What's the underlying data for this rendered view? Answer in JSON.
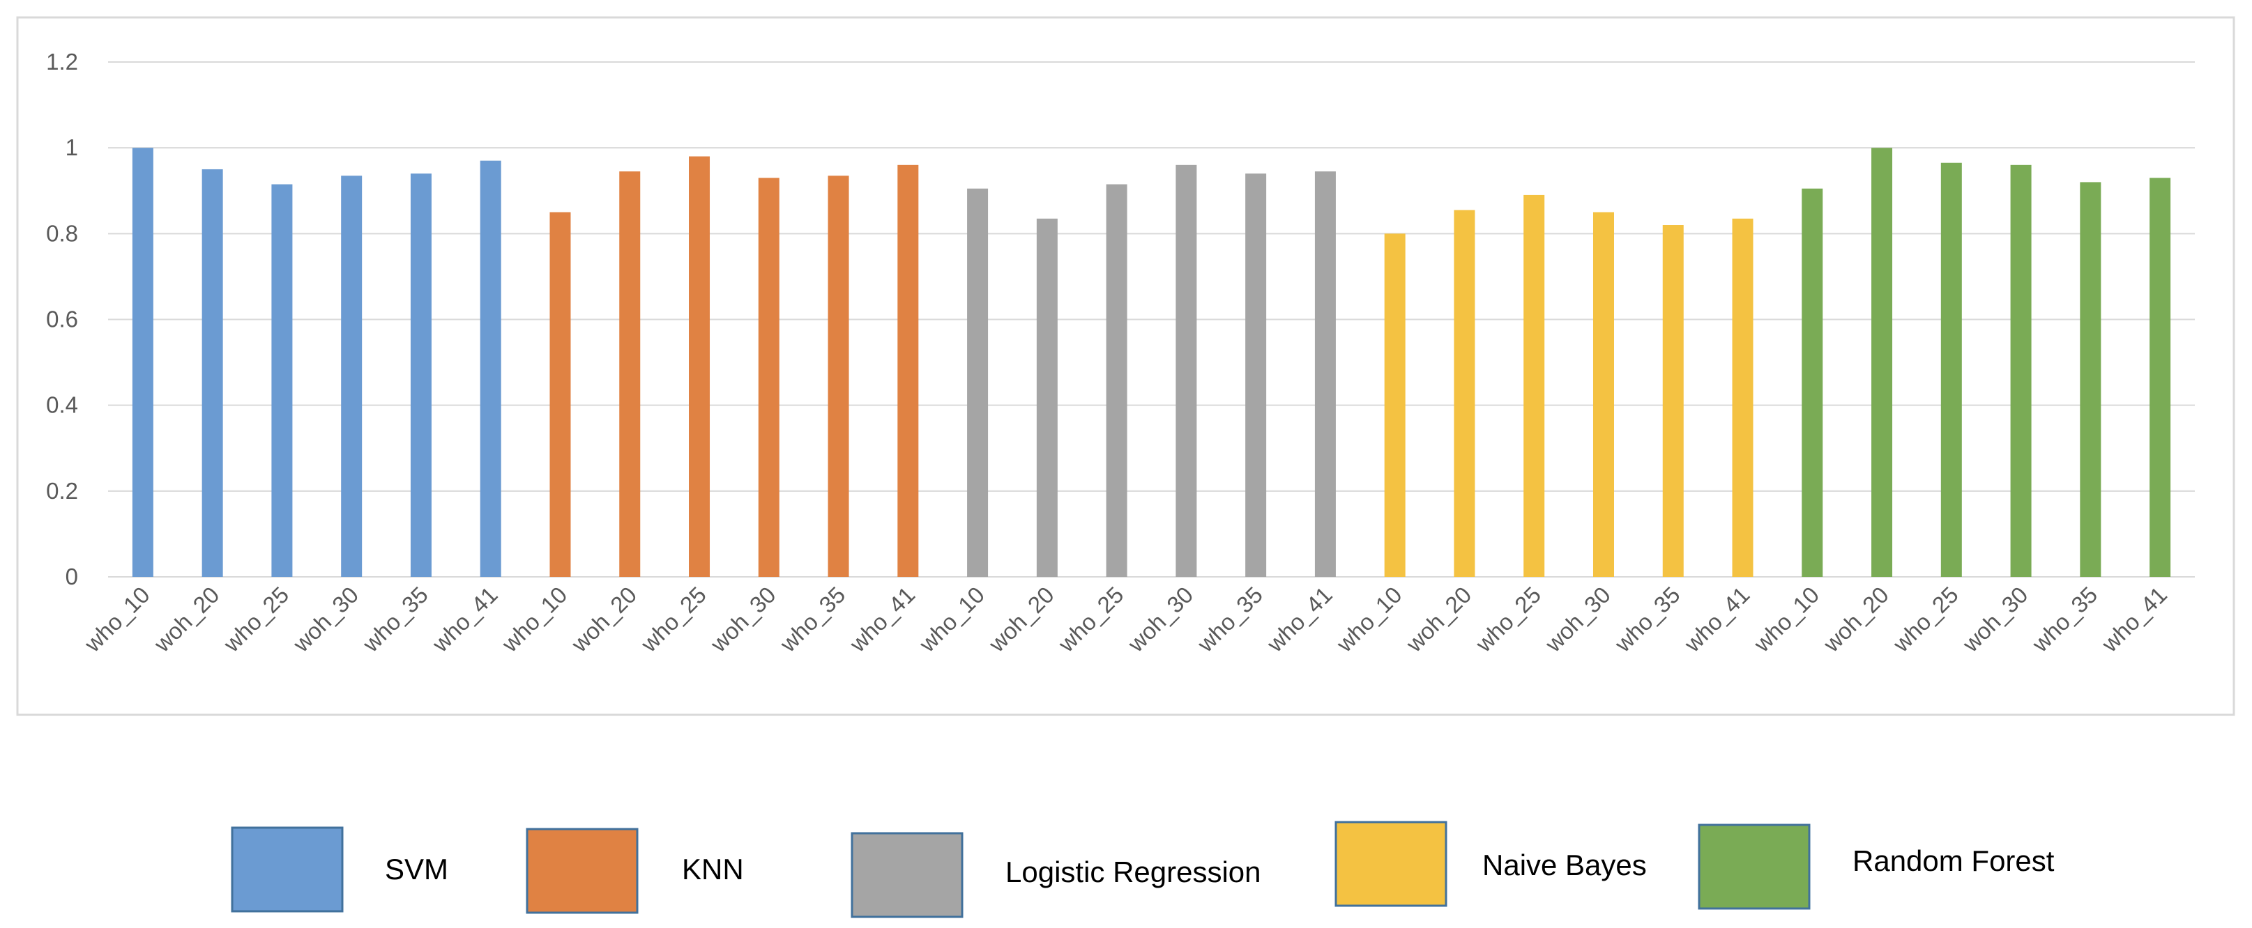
{
  "chart_data": {
    "type": "bar",
    "ylim": [
      0,
      1.2
    ],
    "yticks": [
      0,
      0.2,
      0.4,
      0.6,
      0.8,
      1,
      1.2
    ],
    "grid": true,
    "series": [
      {
        "name": "SVM",
        "color": "#6b9bd2",
        "categories": [
          "who_10",
          "woh_20",
          "who_25",
          "woh_30",
          "who_35",
          "who_41"
        ],
        "values": [
          1.0,
          0.95,
          0.915,
          0.935,
          0.94,
          0.97
        ]
      },
      {
        "name": "KNN",
        "color": "#e08243",
        "categories": [
          "who_10",
          "woh_20",
          "who_25",
          "woh_30",
          "who_35",
          "who_41"
        ],
        "values": [
          0.85,
          0.945,
          0.98,
          0.93,
          0.935,
          0.96
        ]
      },
      {
        "name": "Logistic Regression",
        "color": "#a5a5a5",
        "categories": [
          "who_10",
          "woh_20",
          "who_25",
          "woh_30",
          "who_35",
          "who_41"
        ],
        "values": [
          0.905,
          0.835,
          0.915,
          0.96,
          0.94,
          0.945
        ]
      },
      {
        "name": "Naive Bayes",
        "color": "#f4c242",
        "categories": [
          "who_10",
          "woh_20",
          "who_25",
          "woh_30",
          "who_35",
          "who_41"
        ],
        "values": [
          0.8,
          0.855,
          0.89,
          0.85,
          0.82,
          0.835
        ]
      },
      {
        "name": "Random Forest",
        "color": "#7aab55",
        "categories": [
          "who_10",
          "woh_20",
          "who_25",
          "woh_30",
          "who_35",
          "who_41"
        ],
        "values": [
          0.905,
          1.0,
          0.965,
          0.96,
          0.92,
          0.93
        ]
      }
    ]
  }
}
